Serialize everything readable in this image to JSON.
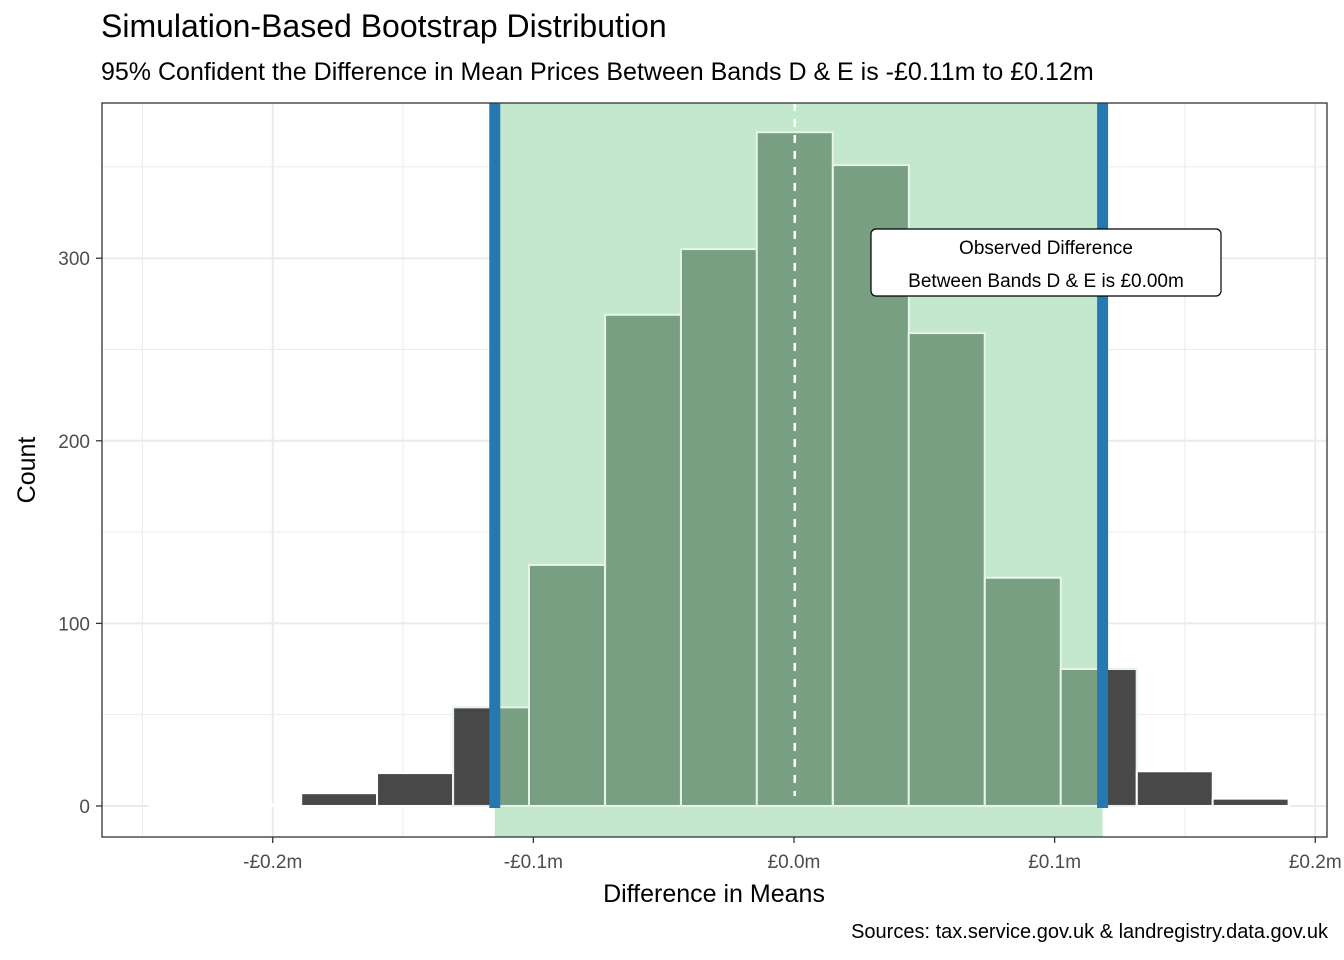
{
  "chart_data": {
    "type": "bar",
    "title": "Simulation-Based Bootstrap Distribution",
    "subtitle": "95% Confident the Difference in Mean Prices Between Bands D & E is -£0.11m to £0.12m",
    "xlabel": "Difference in Means",
    "ylabel": "Count",
    "caption": "Sources: tax.service.gov.uk & landregistry.data.gov.uk",
    "xlim": [
      -0.2655,
      0.2045
    ],
    "ylim": [
      -17,
      385
    ],
    "x_ticks": [
      -0.2,
      -0.1,
      0.0,
      0.1,
      0.2
    ],
    "x_tick_labels": [
      "-£0.2m",
      "-£0.1m",
      "£0.0m",
      "£0.1m",
      "£0.2m"
    ],
    "y_ticks": [
      0,
      100,
      200,
      300
    ],
    "y_tick_labels": [
      "0",
      "100",
      "200",
      "300"
    ],
    "bin_width": 0.02915,
    "bin_centers": [
      -0.2328,
      -0.2037,
      -0.1745,
      -0.1454,
      -0.1162,
      -0.0871,
      -0.0579,
      -0.0288,
      0.0003,
      0.0295,
      0.0586,
      0.0878,
      0.1169,
      0.1461,
      0.1752
    ],
    "values": [
      1,
      1,
      7,
      18,
      54,
      132,
      269,
      305,
      369,
      351,
      259,
      125,
      75,
      19,
      4
    ],
    "ci_lower": -0.1148,
    "ci_upper": 0.1184,
    "observed_difference": 0.0003,
    "annotation": {
      "line1": "Observed Difference",
      "line2": "Between Bands D & E is £0.00m",
      "x": 0.1,
      "y": 300
    },
    "colors": {
      "bar_outside": "#484848",
      "bar_inside": "#799f82",
      "ci_shade": "#c4e8ce",
      "ci_line": "#2678b2",
      "observed_line": "#ffffff",
      "grid": "#ebebeb"
    },
    "grid": true,
    "legend": "none"
  }
}
